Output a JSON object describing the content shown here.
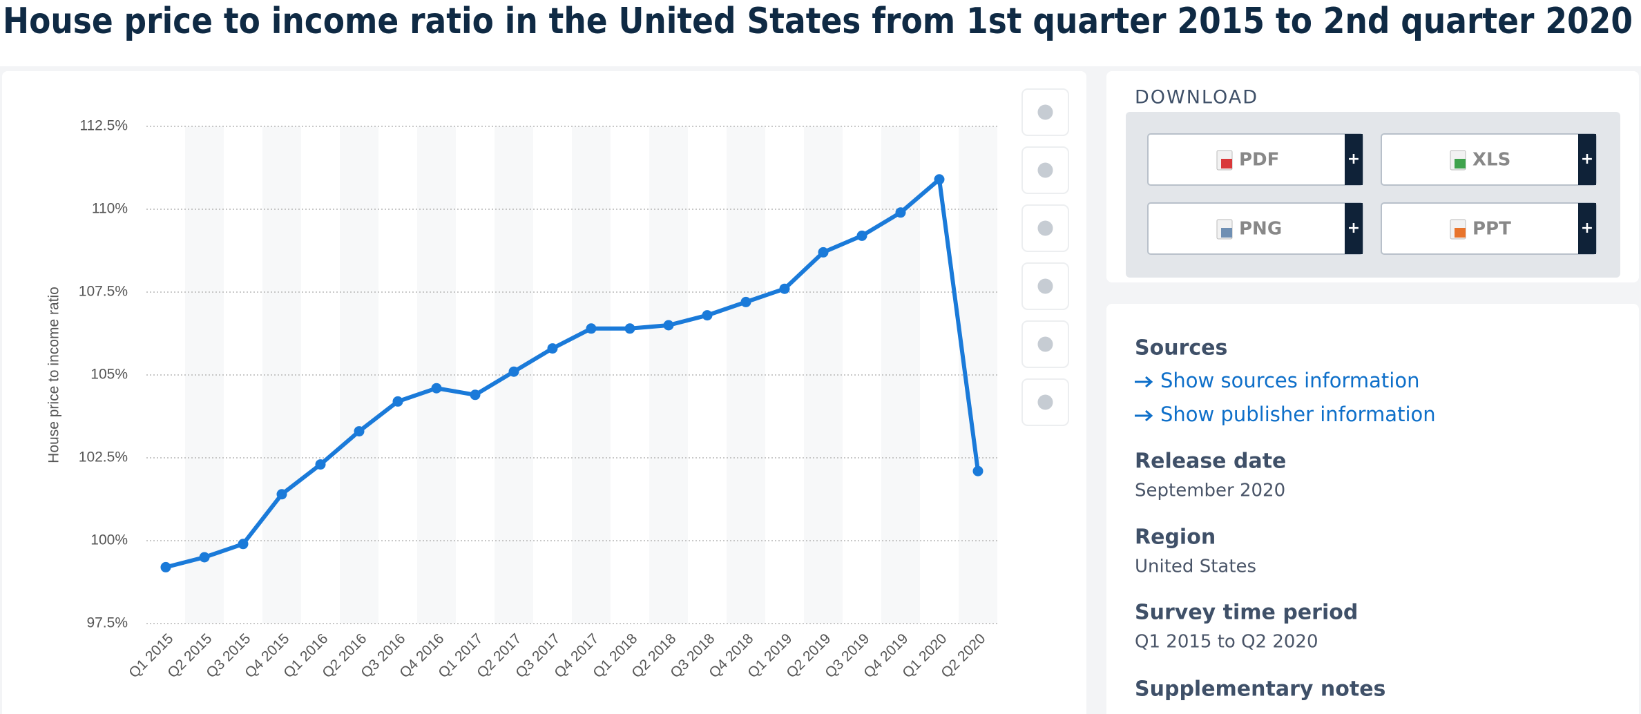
{
  "header": {
    "title": "House price to income ratio in the United States from 1st quarter 2015 to 2nd quarter 2020"
  },
  "chart_data": {
    "type": "line",
    "y_label": "House price to income ratio",
    "categories": [
      "Q1 2015",
      "Q2 2015",
      "Q3 2015",
      "Q4 2015",
      "Q1 2016",
      "Q2 2016",
      "Q3 2016",
      "Q4 2016",
      "Q1 2017",
      "Q2 2017",
      "Q3 2017",
      "Q4 2017",
      "Q1 2018",
      "Q2 2018",
      "Q3 2018",
      "Q4 2018",
      "Q1 2019",
      "Q2 2019",
      "Q3 2019",
      "Q4 2019",
      "Q1 2020",
      "Q2 2020"
    ],
    "values": [
      99.2,
      99.5,
      99.9,
      101.4,
      102.3,
      103.3,
      104.2,
      104.6,
      104.4,
      105.1,
      105.8,
      106.4,
      106.4,
      106.5,
      106.8,
      107.2,
      107.6,
      108.7,
      109.2,
      109.9,
      110.9,
      102.1
    ],
    "color": "#1a7ad9",
    "ylim": [
      97.5,
      112.5
    ],
    "yticks": [
      {
        "value": 97.5,
        "label": "97.5%"
      },
      {
        "value": 100,
        "label": "100%"
      },
      {
        "value": 102.5,
        "label": "102.5%"
      },
      {
        "value": 105,
        "label": "105%"
      },
      {
        "value": 107.5,
        "label": "107.5%"
      },
      {
        "value": 110,
        "label": "110%"
      },
      {
        "value": 112.5,
        "label": "112.5%"
      }
    ],
    "grid": true
  },
  "download": {
    "title": "DOWNLOAD",
    "buttons": [
      "PDF",
      "XLS",
      "PNG",
      "PPT"
    ],
    "plus": "+"
  },
  "info": {
    "sources_title": "Sources",
    "links": [
      "Show sources information",
      "Show publisher information"
    ],
    "release_date_title": "Release date",
    "release_date": "September 2020",
    "region_title": "Region",
    "region": "United States",
    "survey_title": "Survey time period",
    "survey": "Q1 2015 to Q2 2020",
    "notes_title": "Supplementary notes"
  }
}
